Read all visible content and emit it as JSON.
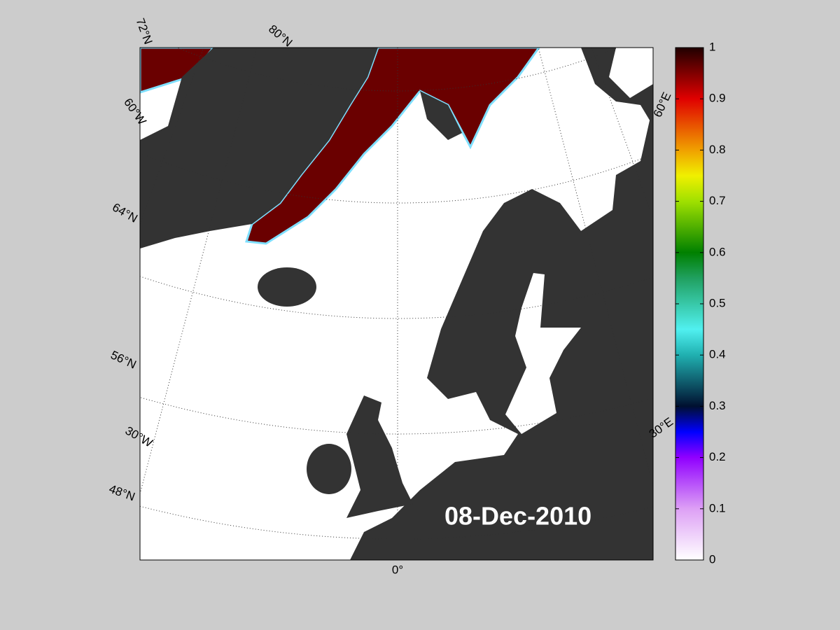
{
  "map": {
    "labels": [
      "72°N",
      "80°N",
      "60°W",
      "64°N",
      "56°N",
      "30°W",
      "48°N",
      "0°",
      "60°E",
      "30°E"
    ],
    "date": "08-Dec-2010"
  },
  "colorbar": {
    "range": [
      0,
      1
    ],
    "ticks": [
      0,
      0.1,
      0.2,
      0.3,
      0.4,
      0.5,
      0.6,
      0.7,
      0.8,
      0.9,
      1
    ]
  }
}
